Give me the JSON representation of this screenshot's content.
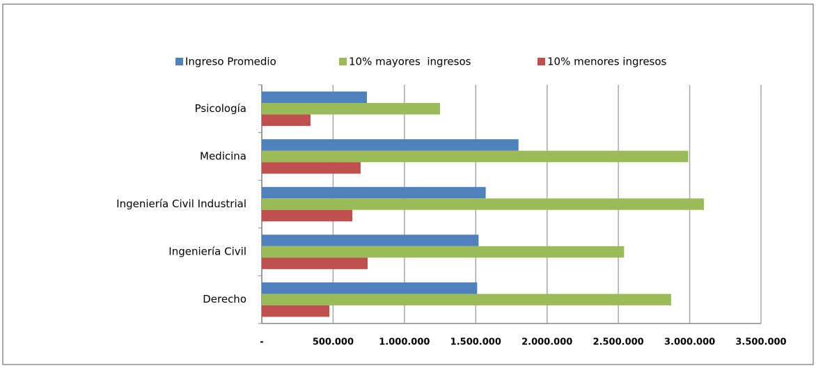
{
  "chart_data": {
    "type": "bar",
    "orientation": "horizontal",
    "categories": [
      "Psicología",
      "Medicina",
      "Ingeniería Civil Industrial",
      "Ingeniería Civil",
      "Derecho"
    ],
    "series": [
      {
        "name": "Ingreso Promedio",
        "color": "#4f81bd",
        "values": [
          737000,
          1800000,
          1570000,
          1520000,
          1510000
        ]
      },
      {
        "name": "10% mayores  ingresos",
        "color": "#9bbb59",
        "values": [
          1250000,
          2990000,
          3100000,
          2540000,
          2870000
        ]
      },
      {
        "name": "10% menores ingresos",
        "color": "#c0504d",
        "values": [
          342000,
          693000,
          635000,
          742000,
          474000
        ]
      }
    ],
    "xlim": [
      0,
      3500000
    ],
    "xticks": [
      {
        "value": 0,
        "label": "-"
      },
      {
        "value": 500000,
        "label": "500.000"
      },
      {
        "value": 1000000,
        "label": "1.000.000"
      },
      {
        "value": 1500000,
        "label": "1.500.000"
      },
      {
        "value": 2000000,
        "label": "2.000.000"
      },
      {
        "value": 2500000,
        "label": "2.500.000"
      },
      {
        "value": 3000000,
        "label": "3.000.000"
      },
      {
        "value": 3500000,
        "label": "3.500.000"
      }
    ],
    "grid": true,
    "legend": "top"
  }
}
